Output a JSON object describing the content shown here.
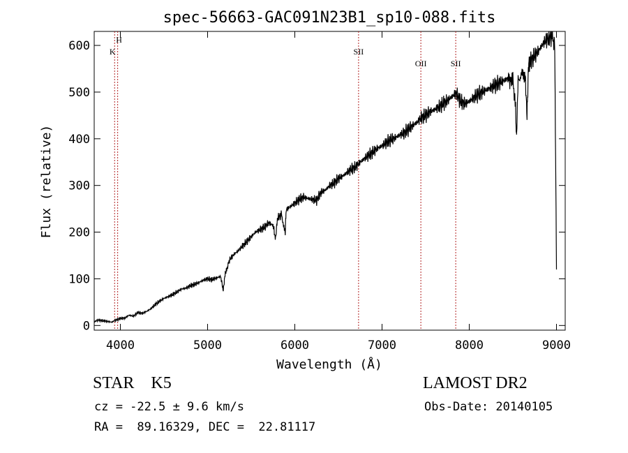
{
  "chart_data": {
    "type": "line",
    "title": "spec-56663-GAC091N23B1_sp10-088.fits",
    "xlabel": "Wavelength (Å)",
    "ylabel": "Flux (relative)",
    "xlim": [
      3700,
      9100
    ],
    "ylim": [
      -10,
      630
    ],
    "x_ticks": [
      4000,
      5000,
      6000,
      7000,
      8000,
      9000
    ],
    "y_ticks": [
      0,
      100,
      200,
      300,
      400,
      500,
      600
    ],
    "series": [
      {
        "name": "spectrum",
        "x": [
          3700,
          3750,
          3800,
          3850,
          3900,
          3950,
          4000,
          4050,
          4100,
          4150,
          4200,
          4250,
          4300,
          4350,
          4400,
          4450,
          4500,
          4550,
          4600,
          4650,
          4700,
          4750,
          4800,
          4850,
          4900,
          4950,
          5000,
          5050,
          5100,
          5150,
          5180,
          5200,
          5220,
          5250,
          5300,
          5350,
          5400,
          5450,
          5500,
          5550,
          5600,
          5650,
          5700,
          5750,
          5780,
          5800,
          5850,
          5890,
          5900,
          5950,
          6000,
          6050,
          6100,
          6150,
          6200,
          6250,
          6300,
          6350,
          6400,
          6450,
          6500,
          6550,
          6600,
          6650,
          6700,
          6750,
          6800,
          6850,
          6900,
          6950,
          7000,
          7050,
          7100,
          7150,
          7200,
          7250,
          7300,
          7350,
          7400,
          7450,
          7500,
          7550,
          7600,
          7650,
          7700,
          7750,
          7800,
          7850,
          7900,
          7950,
          8000,
          8050,
          8100,
          8150,
          8200,
          8250,
          8300,
          8350,
          8400,
          8450,
          8480,
          8500,
          8530,
          8542,
          8560,
          8600,
          8640,
          8662,
          8680,
          8700,
          8750,
          8800,
          8850,
          8900,
          8950,
          8980,
          9000
        ],
        "values": [
          8,
          12,
          10,
          9,
          7,
          12,
          15,
          16,
          22,
          20,
          28,
          26,
          30,
          36,
          45,
          52,
          58,
          62,
          66,
          72,
          78,
          80,
          85,
          88,
          92,
          97,
          100,
          98,
          102,
          105,
          75,
          110,
          120,
          140,
          152,
          160,
          170,
          180,
          190,
          200,
          205,
          210,
          220,
          215,
          185,
          230,
          238,
          195,
          248,
          255,
          262,
          270,
          275,
          272,
          270,
          268,
          285,
          290,
          300,
          305,
          315,
          320,
          328,
          335,
          340,
          350,
          358,
          365,
          372,
          380,
          385,
          392,
          398,
          402,
          408,
          412,
          420,
          428,
          435,
          445,
          450,
          458,
          462,
          468,
          475,
          482,
          490,
          498,
          480,
          475,
          480,
          488,
          495,
          500,
          505,
          510,
          515,
          520,
          525,
          530,
          520,
          525,
          470,
          400,
          530,
          535,
          540,
          450,
          560,
          565,
          578,
          590,
          605,
          615,
          620,
          600,
          120
        ]
      }
    ],
    "lines": [
      {
        "label": "K",
        "x": 3934
      },
      {
        "label": "H",
        "x": 3969
      },
      {
        "label": "SII",
        "x": 6731
      },
      {
        "label": "OII",
        "x": 7445
      },
      {
        "label": "SII",
        "x": 7845
      }
    ],
    "line_color": "#b22222"
  },
  "info": {
    "obj_class": "STAR    K5",
    "survey": "LAMOST DR2",
    "cz": "cz = -22.5 ± 9.6 km/s",
    "obs_date": "Obs-Date: 20140105",
    "radec": "RA =  89.16329, DEC =  22.81117"
  }
}
